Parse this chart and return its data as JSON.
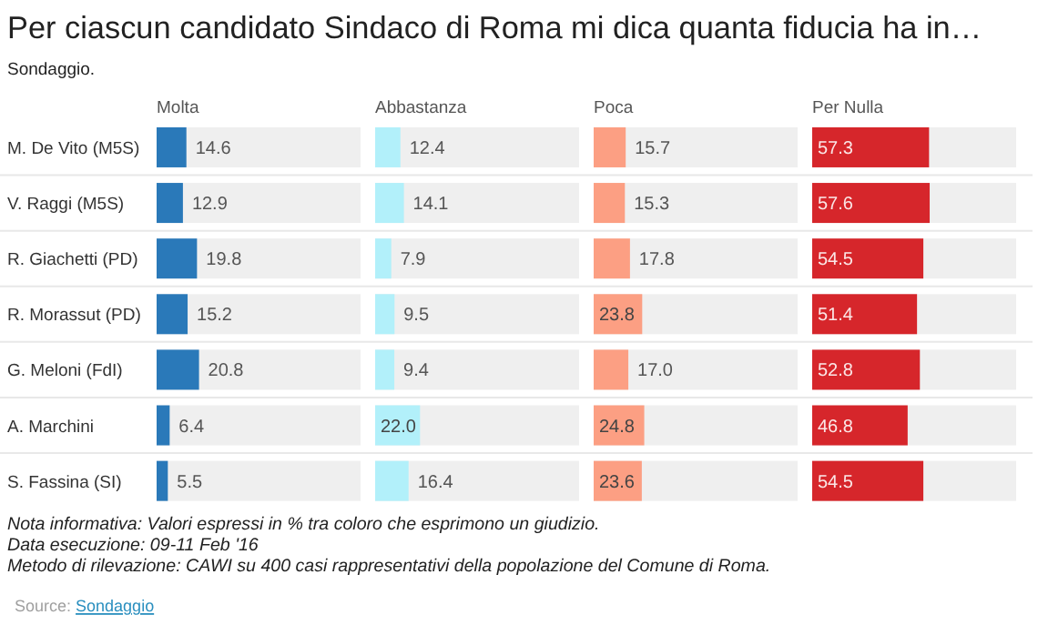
{
  "chart_data": [
    {
      "type": "other",
      "title": "Per ciascun candidato Sindaco di Roma mi dica quanta fiducia ha in…",
      "subtitle": "Sondaggio.",
      "annotations": [
        "Nota informativa: Valori espressi in % tra coloro che esprimono un giudizio.",
        "Data esecuzione: 09-11 Feb '16",
        "Metodo di rilevazione: CAWI su 400 casi rappresentativi della popolazione del Comune di Roma.",
        "Source: Sondaggio"
      ]
    },
    {
      "type": "bar",
      "orientation": "horizontal",
      "title": "Molta",
      "categories": [
        "M. De Vito (M5S)",
        "V. Raggi (M5S)",
        "R. Giachetti (PD)",
        "R. Morassut (PD)",
        "G. Meloni (FdI)",
        "A. Marchini",
        "S. Fassina (SI)"
      ],
      "values": [
        14.6,
        12.9,
        19.8,
        15.2,
        20.8,
        6.4,
        5.5
      ],
      "value_labels": [
        "14.6",
        "12.9",
        "19.8",
        "15.2",
        "20.8",
        "6.4",
        "5.5"
      ],
      "color": "#2a79b9",
      "xlim": [
        0,
        100
      ],
      "grid": "y",
      "tick_labels": "y"
    },
    {
      "type": "bar",
      "orientation": "horizontal",
      "title": "Abbastanza",
      "categories": [
        null,
        null,
        null,
        null,
        null,
        null,
        null
      ],
      "values": [
        12.4,
        14.1,
        7.9,
        9.5,
        9.4,
        22.0,
        16.4
      ],
      "value_labels": [
        "12.4",
        "14.1",
        "7.9",
        "9.5",
        "9.4",
        "22.0",
        "16.4"
      ],
      "color": "#b2f0fa",
      "xlim": [
        0,
        100
      ],
      "grid": "y"
    },
    {
      "type": "bar",
      "orientation": "horizontal",
      "title": "Poca",
      "categories": [
        null,
        null,
        null,
        null,
        null,
        null,
        null
      ],
      "values": [
        15.7,
        15.3,
        17.8,
        23.8,
        17.0,
        24.8,
        23.6
      ],
      "value_labels": [
        "15.7",
        "15.3",
        "17.8",
        "23.8",
        "17.0",
        "24.8",
        "23.6"
      ],
      "color": "#fc9f83",
      "xlim": [
        0,
        100
      ],
      "grid": "y"
    },
    {
      "type": "bar",
      "orientation": "horizontal",
      "title": "Per Nulla",
      "categories": [
        null,
        null,
        null,
        null,
        null,
        null,
        null
      ],
      "values": [
        57.3,
        57.6,
        54.5,
        51.4,
        52.8,
        46.8,
        54.5
      ],
      "value_labels": [
        "57.3",
        "57.6",
        "54.5",
        "51.4",
        "52.8",
        "46.8",
        "54.5"
      ],
      "color": "#d6262b",
      "xlim": [
        0,
        100
      ],
      "grid": "y"
    }
  ]
}
